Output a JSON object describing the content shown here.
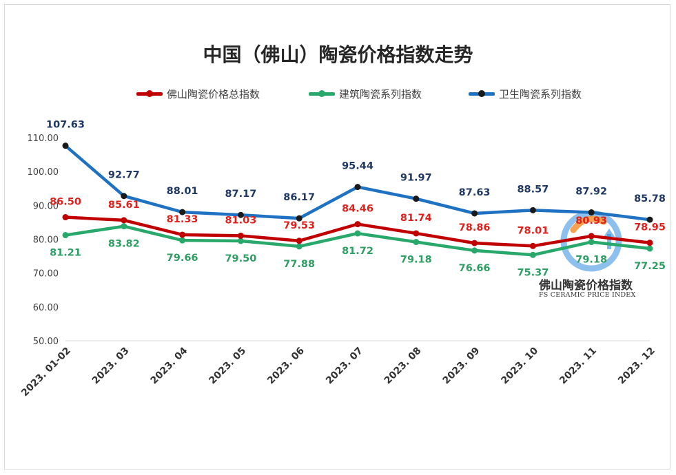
{
  "title": "中国（佛山）陶瓷价格指数走势",
  "watermark": {
    "title": "佛山陶瓷价格指数",
    "subtitle": "FS CERAMIC PRICE INDEX"
  },
  "colors": {
    "total": "#c00000",
    "building": "#28a86b",
    "sanitary": "#1f72c2",
    "blue_label": "#1f3864",
    "green_label": "#2e9e63",
    "red_label": "#e0201c",
    "axis_text": "#404040",
    "grid": "#d9d9d9"
  },
  "chart_data": {
    "type": "line",
    "title": "中国（佛山）陶瓷价格指数走势",
    "categories": [
      "2023. 01-02",
      "2023. 03",
      "2023. 04",
      "2023. 05",
      "2023. 06",
      "2023. 07",
      "2023. 08",
      "2023. 09",
      "2023. 10",
      "2023. 11",
      "2023. 12"
    ],
    "ylim": [
      50,
      110
    ],
    "yticks": [
      50,
      60,
      70,
      80,
      90,
      100,
      110
    ],
    "ytick_labels": [
      "50.00",
      "60.00",
      "70.00",
      "80.00",
      "90.00",
      "100.00",
      "110.00"
    ],
    "grid": false,
    "legend_position": "top",
    "series": [
      {
        "key": "total",
        "name": "佛山陶瓷价格总指数",
        "values": [
          86.5,
          85.61,
          81.33,
          81.03,
          79.53,
          84.46,
          81.74,
          78.86,
          78.01,
          80.93,
          78.95
        ],
        "labels": [
          "86.50",
          "85.61",
          "81.33",
          "81.03",
          "79.53",
          "84.46",
          "81.74",
          "78.86",
          "78.01",
          "80.93",
          "78.95"
        ]
      },
      {
        "key": "building",
        "name": "建筑陶瓷系列指数",
        "values": [
          81.21,
          83.82,
          79.66,
          79.5,
          77.88,
          81.72,
          79.18,
          76.66,
          75.37,
          79.18,
          77.25
        ],
        "labels": [
          "81.21",
          "83.82",
          "79.66",
          "79.50",
          "77.88",
          "81.72",
          "79.18",
          "76.66",
          "75.37",
          "79.18",
          "77.25"
        ]
      },
      {
        "key": "sanitary",
        "name": "卫生陶瓷系列指数",
        "values": [
          107.63,
          92.77,
          88.01,
          87.17,
          86.17,
          95.44,
          91.97,
          87.63,
          88.57,
          87.92,
          85.78
        ],
        "labels": [
          "107.63",
          "92.77",
          "88.01",
          "87.17",
          "86.17",
          "95.44",
          "91.97",
          "87.63",
          "88.57",
          "87.92",
          "85.78"
        ]
      }
    ]
  }
}
